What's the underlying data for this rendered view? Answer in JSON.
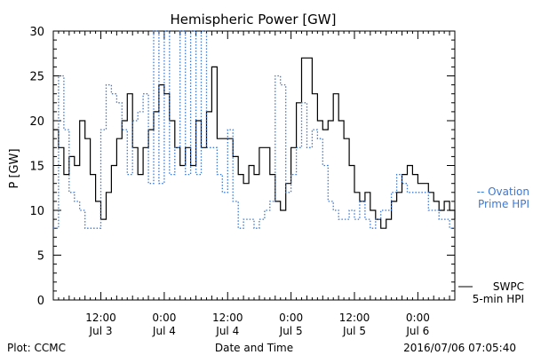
{
  "footer": {
    "left": "Plot: CCMC",
    "center": "Date and Time",
    "right": "2016/07/06 07:05:40"
  },
  "chart_data": {
    "type": "line",
    "title": "Hemispheric Power [GW]",
    "ylabel": "P [GW]",
    "xlabel": "Date and Time",
    "ylim": [
      0,
      30
    ],
    "yticks": [
      0,
      5,
      10,
      15,
      20,
      25,
      30
    ],
    "xlim": [
      "2016-07-03 03:00",
      "2016-07-06 07:00"
    ],
    "xticks": [
      {
        "time": "2016-07-03 12:00",
        "top": "12:00",
        "bottom": "Jul 3"
      },
      {
        "time": "2016-07-04 00:00",
        "top": "0:00",
        "bottom": "Jul 4"
      },
      {
        "time": "2016-07-04 12:00",
        "top": "12:00",
        "bottom": "Jul 4"
      },
      {
        "time": "2016-07-05 00:00",
        "top": "0:00",
        "bottom": "Jul 5"
      },
      {
        "time": "2016-07-05 12:00",
        "top": "12:00",
        "bottom": "Jul 5"
      },
      {
        "time": "2016-07-06 00:00",
        "top": "0:00",
        "bottom": "Jul 6"
      }
    ],
    "grid": false,
    "legend_position": "right",
    "series": [
      {
        "name": "SWPC 5-min HPI",
        "legend_lines": [
          "SWPC",
          "5-min HPI"
        ],
        "color": "#000000",
        "style": "solid",
        "points": [
          [
            "2016-07-03 03:00",
            19
          ],
          [
            "2016-07-03 04:00",
            17
          ],
          [
            "2016-07-03 05:00",
            14
          ],
          [
            "2016-07-03 06:00",
            16
          ],
          [
            "2016-07-03 07:00",
            15
          ],
          [
            "2016-07-03 08:00",
            20
          ],
          [
            "2016-07-03 09:00",
            18
          ],
          [
            "2016-07-03 10:00",
            14
          ],
          [
            "2016-07-03 11:00",
            11
          ],
          [
            "2016-07-03 12:00",
            9
          ],
          [
            "2016-07-03 13:00",
            12
          ],
          [
            "2016-07-03 14:00",
            15
          ],
          [
            "2016-07-03 15:00",
            18
          ],
          [
            "2016-07-03 16:00",
            20
          ],
          [
            "2016-07-03 17:00",
            23
          ],
          [
            "2016-07-03 18:00",
            17
          ],
          [
            "2016-07-03 19:00",
            14
          ],
          [
            "2016-07-03 20:00",
            17
          ],
          [
            "2016-07-03 21:00",
            19
          ],
          [
            "2016-07-03 22:00",
            21
          ],
          [
            "2016-07-03 23:00",
            24
          ],
          [
            "2016-07-04 00:00",
            23
          ],
          [
            "2016-07-04 01:00",
            20
          ],
          [
            "2016-07-04 02:00",
            17
          ],
          [
            "2016-07-04 03:00",
            15
          ],
          [
            "2016-07-04 04:00",
            17
          ],
          [
            "2016-07-04 05:00",
            15
          ],
          [
            "2016-07-04 06:00",
            20
          ],
          [
            "2016-07-04 07:00",
            17
          ],
          [
            "2016-07-04 08:00",
            21
          ],
          [
            "2016-07-04 09:00",
            26
          ],
          [
            "2016-07-04 10:00",
            18
          ],
          [
            "2016-07-04 11:00",
            18
          ],
          [
            "2016-07-04 12:00",
            18
          ],
          [
            "2016-07-04 13:00",
            16
          ],
          [
            "2016-07-04 14:00",
            14
          ],
          [
            "2016-07-04 15:00",
            13
          ],
          [
            "2016-07-04 16:00",
            15
          ],
          [
            "2016-07-04 17:00",
            14
          ],
          [
            "2016-07-04 18:00",
            17
          ],
          [
            "2016-07-04 19:00",
            17
          ],
          [
            "2016-07-04 20:00",
            14
          ],
          [
            "2016-07-04 21:00",
            11
          ],
          [
            "2016-07-04 22:00",
            10
          ],
          [
            "2016-07-04 23:00",
            13
          ],
          [
            "2016-07-05 00:00",
            17
          ],
          [
            "2016-07-05 01:00",
            22
          ],
          [
            "2016-07-05 02:00",
            27
          ],
          [
            "2016-07-05 03:00",
            27
          ],
          [
            "2016-07-05 04:00",
            23
          ],
          [
            "2016-07-05 05:00",
            20
          ],
          [
            "2016-07-05 06:00",
            19
          ],
          [
            "2016-07-05 07:00",
            20
          ],
          [
            "2016-07-05 08:00",
            23
          ],
          [
            "2016-07-05 09:00",
            20
          ],
          [
            "2016-07-05 10:00",
            18
          ],
          [
            "2016-07-05 11:00",
            15
          ],
          [
            "2016-07-05 12:00",
            12
          ],
          [
            "2016-07-05 13:00",
            11
          ],
          [
            "2016-07-05 14:00",
            12
          ],
          [
            "2016-07-05 15:00",
            10
          ],
          [
            "2016-07-05 16:00",
            9
          ],
          [
            "2016-07-05 17:00",
            8
          ],
          [
            "2016-07-05 18:00",
            9
          ],
          [
            "2016-07-05 19:00",
            11
          ],
          [
            "2016-07-05 20:00",
            12
          ],
          [
            "2016-07-05 21:00",
            14
          ],
          [
            "2016-07-05 22:00",
            15
          ],
          [
            "2016-07-05 23:00",
            14
          ],
          [
            "2016-07-06 00:00",
            13
          ],
          [
            "2016-07-06 01:00",
            13
          ],
          [
            "2016-07-06 02:00",
            12
          ],
          [
            "2016-07-06 03:00",
            11
          ],
          [
            "2016-07-06 04:00",
            10
          ],
          [
            "2016-07-06 05:00",
            11
          ],
          [
            "2016-07-06 06:00",
            10
          ],
          [
            "2016-07-06 07:00",
            9
          ]
        ]
      },
      {
        "name": "Ovation Prime HPI",
        "legend_lines": [
          "-- Ovation",
          "Prime HPI"
        ],
        "color": "#3a78d6",
        "style": "dotted",
        "points": [
          [
            "2016-07-03 03:00",
            8
          ],
          [
            "2016-07-03 04:00",
            25
          ],
          [
            "2016-07-03 05:00",
            19
          ],
          [
            "2016-07-03 06:00",
            12
          ],
          [
            "2016-07-03 07:00",
            11
          ],
          [
            "2016-07-03 08:00",
            10
          ],
          [
            "2016-07-03 09:00",
            8
          ],
          [
            "2016-07-03 11:00",
            8
          ],
          [
            "2016-07-03 12:00",
            19
          ],
          [
            "2016-07-03 13:00",
            24
          ],
          [
            "2016-07-03 14:00",
            23
          ],
          [
            "2016-07-03 15:00",
            22
          ],
          [
            "2016-07-03 16:00",
            19
          ],
          [
            "2016-07-03 17:00",
            14
          ],
          [
            "2016-07-03 18:00",
            20
          ],
          [
            "2016-07-03 19:00",
            21
          ],
          [
            "2016-07-03 20:00",
            23
          ],
          [
            "2016-07-03 21:00",
            13
          ],
          [
            "2016-07-03 22:00",
            30
          ],
          [
            "2016-07-03 23:00",
            13
          ],
          [
            "2016-07-04 00:00",
            30
          ],
          [
            "2016-07-04 01:00",
            14
          ],
          [
            "2016-07-04 02:00",
            17
          ],
          [
            "2016-07-04 03:00",
            30
          ],
          [
            "2016-07-04 04:00",
            14
          ],
          [
            "2016-07-04 05:00",
            30
          ],
          [
            "2016-07-04 06:00",
            14
          ],
          [
            "2016-07-04 07:00",
            30
          ],
          [
            "2016-07-04 08:00",
            17
          ],
          [
            "2016-07-04 09:00",
            17
          ],
          [
            "2016-07-04 10:00",
            14
          ],
          [
            "2016-07-04 11:00",
            12
          ],
          [
            "2016-07-04 12:00",
            19
          ],
          [
            "2016-07-04 13:00",
            11
          ],
          [
            "2016-07-04 14:00",
            8
          ],
          [
            "2016-07-04 15:00",
            9
          ],
          [
            "2016-07-04 16:00",
            9
          ],
          [
            "2016-07-04 17:00",
            8
          ],
          [
            "2016-07-04 18:00",
            9
          ],
          [
            "2016-07-04 19:00",
            10
          ],
          [
            "2016-07-04 20:00",
            11
          ],
          [
            "2016-07-04 21:00",
            25
          ],
          [
            "2016-07-04 22:00",
            24
          ],
          [
            "2016-07-04 23:00",
            12
          ],
          [
            "2016-07-05 00:00",
            14
          ],
          [
            "2016-07-05 01:00",
            17
          ],
          [
            "2016-07-05 02:00",
            22
          ],
          [
            "2016-07-05 03:00",
            17
          ],
          [
            "2016-07-05 04:00",
            19
          ],
          [
            "2016-07-05 05:00",
            18
          ],
          [
            "2016-07-05 06:00",
            15
          ],
          [
            "2016-07-05 07:00",
            11
          ],
          [
            "2016-07-05 08:00",
            10
          ],
          [
            "2016-07-05 09:00",
            9
          ],
          [
            "2016-07-05 10:00",
            9
          ],
          [
            "2016-07-05 11:00",
            10
          ],
          [
            "2016-07-05 12:00",
            9
          ],
          [
            "2016-07-05 13:00",
            11
          ],
          [
            "2016-07-05 14:00",
            9
          ],
          [
            "2016-07-05 15:00",
            8
          ],
          [
            "2016-07-05 16:00",
            9
          ],
          [
            "2016-07-05 17:00",
            10
          ],
          [
            "2016-07-05 18:00",
            10
          ],
          [
            "2016-07-05 19:00",
            12
          ],
          [
            "2016-07-05 20:00",
            14
          ],
          [
            "2016-07-05 21:00",
            13
          ],
          [
            "2016-07-05 22:00",
            12
          ],
          [
            "2016-07-05 23:00",
            12
          ],
          [
            "2016-07-06 00:00",
            12
          ],
          [
            "2016-07-06 01:00",
            12
          ],
          [
            "2016-07-06 02:00",
            10
          ],
          [
            "2016-07-06 03:00",
            10
          ],
          [
            "2016-07-06 04:00",
            9
          ],
          [
            "2016-07-06 05:00",
            9
          ],
          [
            "2016-07-06 06:00",
            8
          ],
          [
            "2016-07-06 07:00",
            8
          ]
        ]
      }
    ]
  }
}
